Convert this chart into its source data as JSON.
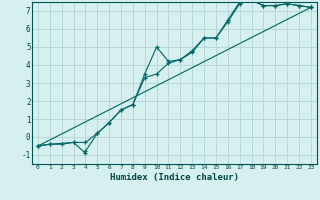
{
  "xlabel": "Humidex (Indice chaleur)",
  "background_color": "#d6f0f0",
  "grid_color": "#b8d8d8",
  "line_color": "#006666",
  "xlim": [
    -0.5,
    23.5
  ],
  "ylim": [
    -1.5,
    7.5
  ],
  "xticks": [
    0,
    1,
    2,
    3,
    4,
    5,
    6,
    7,
    8,
    9,
    10,
    11,
    12,
    13,
    14,
    15,
    16,
    17,
    18,
    19,
    20,
    21,
    22,
    23
  ],
  "yticks": [
    -1,
    0,
    1,
    2,
    3,
    4,
    5,
    6,
    7
  ],
  "series": [
    [
      [
        -0.5,
        -0.4,
        -0.4,
        -0.3,
        -0.9
      ],
      [
        0,
        1,
        2,
        3,
        4
      ]
    ],
    [
      [
        -0.5,
        -0.4,
        -0.3,
        -0.3,
        0.2,
        0.8,
        1.5,
        1.8,
        3.3,
        3.5,
        4.1,
        4.3,
        4.7,
        5.5,
        5.5,
        6.4,
        7.4,
        7.6,
        7.3,
        7.3,
        7.4,
        7.3,
        7.2
      ],
      [
        0,
        1,
        3,
        4,
        5,
        6,
        7,
        8,
        9,
        10,
        11,
        12,
        13,
        14,
        15,
        16,
        17,
        18,
        19,
        20,
        21,
        22,
        23
      ]
    ],
    [
      [
        -0.8,
        0.2,
        0.8,
        1.5,
        1.8,
        3.5,
        5.0,
        4.2,
        4.3,
        4.8,
        5.5,
        5.5,
        6.5,
        7.5,
        7.6,
        7.3,
        7.3,
        7.4,
        7.3,
        7.2
      ],
      [
        4,
        5,
        6,
        7,
        8,
        9,
        10,
        11,
        12,
        13,
        14,
        15,
        16,
        17,
        18,
        19,
        20,
        21,
        22,
        23
      ]
    ],
    [
      [
        -0.5,
        7.2
      ],
      [
        0,
        23
      ]
    ]
  ]
}
